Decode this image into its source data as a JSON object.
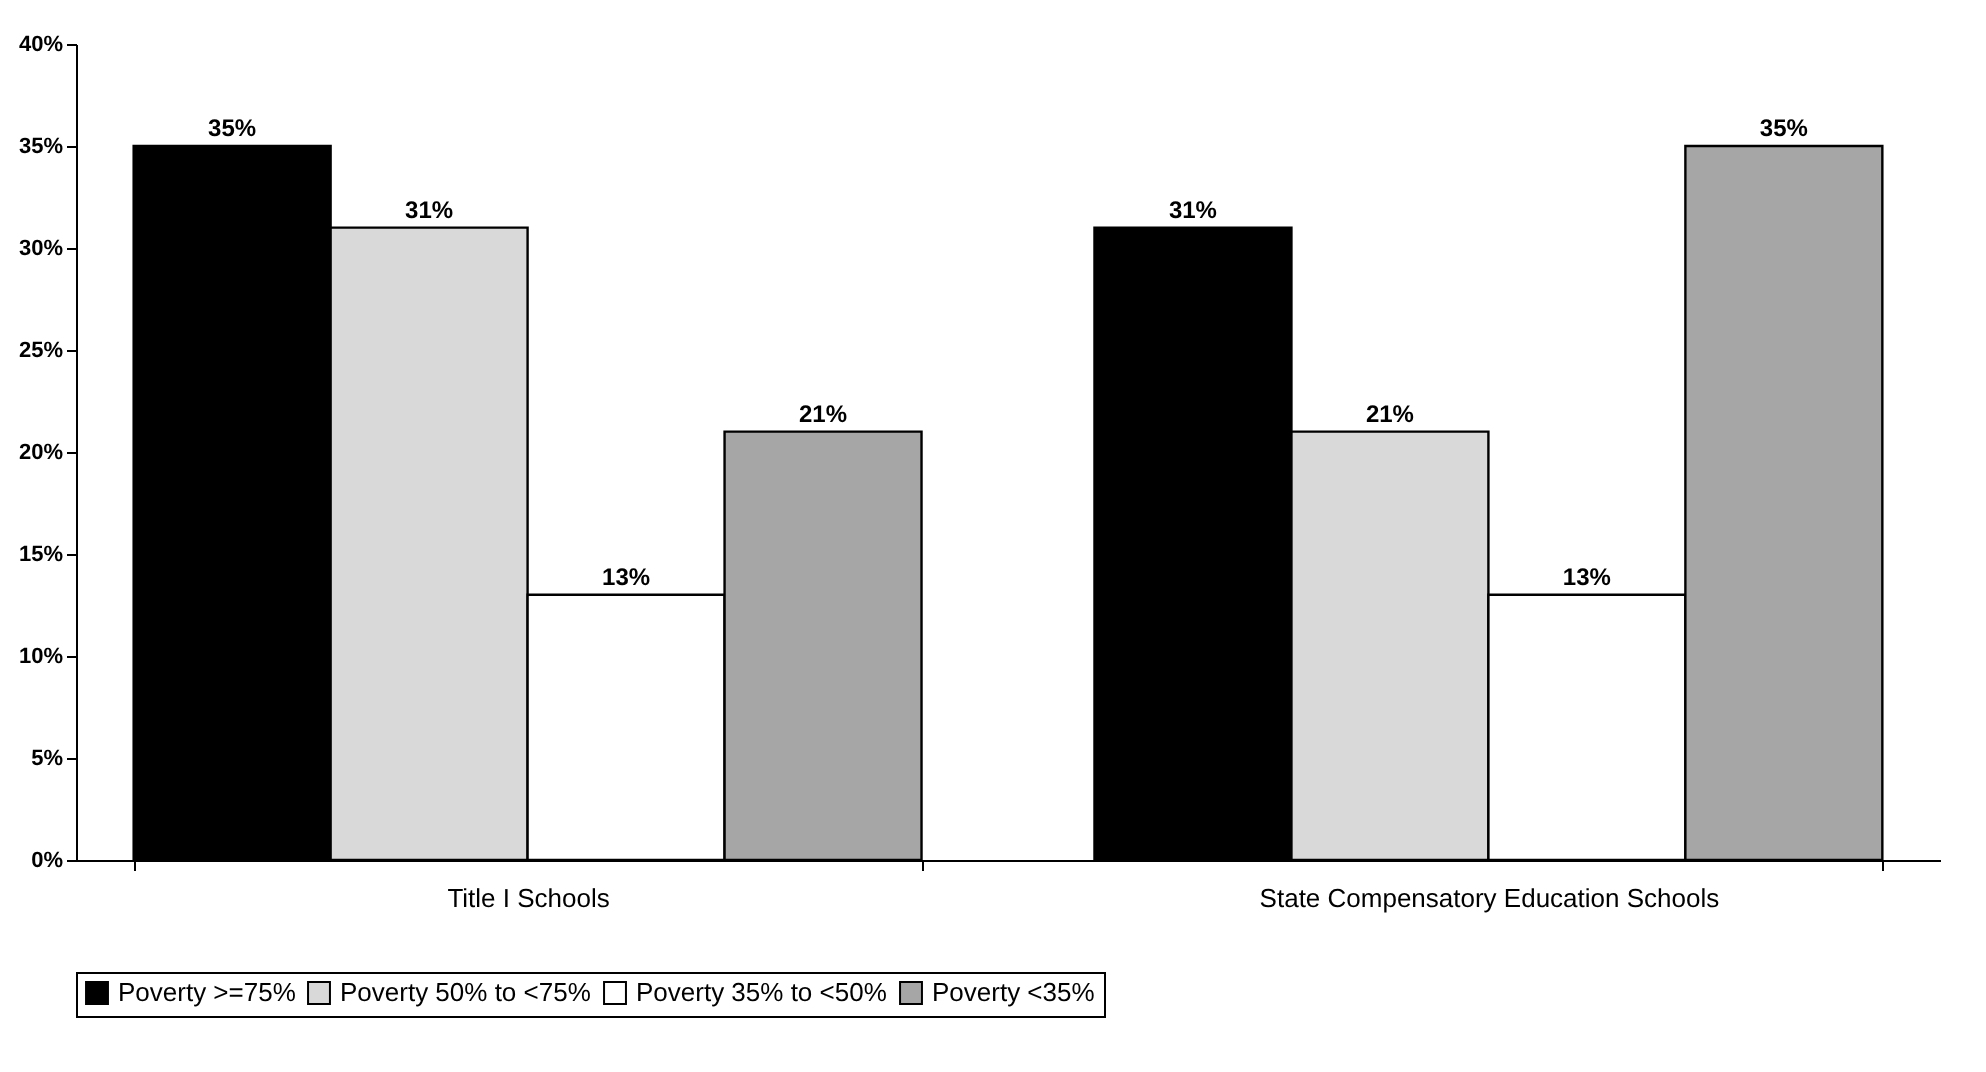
{
  "chart_data": {
    "type": "bar",
    "categories": [
      "Title I Schools",
      "State Compensatory Education Schools"
    ],
    "series": [
      {
        "name": "Poverty >=75%",
        "color": "#000000",
        "values": [
          35,
          31
        ],
        "value_labels": [
          "35%",
          "31%"
        ]
      },
      {
        "name": "Poverty 50% to <75%",
        "color": "#d9d9d9",
        "values": [
          31,
          21
        ],
        "value_labels": [
          "31%",
          "21%"
        ]
      },
      {
        "name": "Poverty 35% to <50%",
        "color": "#ffffff",
        "values": [
          13,
          13
        ],
        "value_labels": [
          "13%",
          "13%"
        ]
      },
      {
        "name": "Poverty <35%",
        "color": "#a6a6a6",
        "values": [
          21,
          35
        ],
        "value_labels": [
          "21%",
          "35%"
        ]
      }
    ],
    "ylim": [
      0,
      40
    ],
    "yticks": [
      {
        "value": 0,
        "label": "0%"
      },
      {
        "value": 5,
        "label": "5%"
      },
      {
        "value": 10,
        "label": "10%"
      },
      {
        "value": 15,
        "label": "15%"
      },
      {
        "value": 20,
        "label": "20%"
      },
      {
        "value": 25,
        "label": "25%"
      },
      {
        "value": 30,
        "label": "30%"
      },
      {
        "value": 35,
        "label": "35%"
      },
      {
        "value": 40,
        "label": "40%"
      }
    ],
    "grid": false,
    "legend": "bottom"
  }
}
